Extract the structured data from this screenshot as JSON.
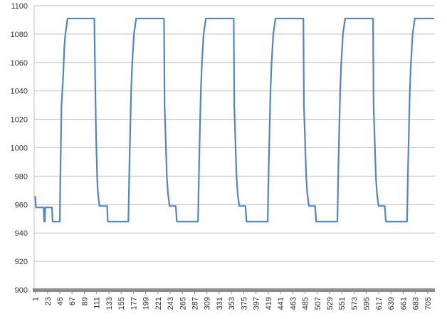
{
  "chart_data": {
    "type": "line",
    "x": [
      1,
      2,
      16,
      17,
      18,
      19,
      31,
      32,
      45,
      46,
      48,
      51,
      53,
      55,
      59,
      107,
      108,
      110,
      112,
      113,
      116,
      130,
      131,
      168,
      170,
      173,
      175,
      178,
      182,
      232,
      233,
      237,
      239,
      242,
      253,
      255,
      293,
      295,
      298,
      300,
      303,
      307,
      357,
      358,
      362,
      364,
      367,
      378,
      380,
      418,
      420,
      423,
      425,
      428,
      432,
      482,
      483,
      487,
      489,
      492,
      503,
      505,
      543,
      545,
      548,
      550,
      553,
      557,
      607,
      608,
      612,
      614,
      617,
      628,
      630,
      668,
      670,
      673,
      675,
      678,
      682,
      717
    ],
    "series": [
      {
        "color": "#4f86c6",
        "values": [
          966,
          958,
          958,
          948,
          948,
          958,
          958,
          948,
          948,
          980,
          1030,
          1050,
          1070,
          1080,
          1091,
          1091,
          1060,
          1010,
          980,
          970,
          959,
          959,
          948,
          948,
          990,
          1040,
          1060,
          1080,
          1091,
          1091,
          1030,
          980,
          968,
          959,
          959,
          948,
          948,
          990,
          1040,
          1060,
          1080,
          1091,
          1091,
          1030,
          980,
          968,
          959,
          959,
          948,
          948,
          990,
          1040,
          1060,
          1080,
          1091,
          1091,
          1030,
          980,
          968,
          959,
          959,
          948,
          948,
          990,
          1040,
          1060,
          1080,
          1091,
          1091,
          1030,
          980,
          968,
          959,
          959,
          948,
          948,
          990,
          1040,
          1060,
          1080,
          1091,
          1091
        ]
      }
    ],
    "xlim": [
      -1,
      718
    ],
    "xticks": [
      1,
      23,
      45,
      67,
      89,
      111,
      133,
      155,
      177,
      199,
      221,
      243,
      265,
      287,
      309,
      331,
      353,
      375,
      397,
      419,
      441,
      463,
      485,
      507,
      529,
      551,
      573,
      595,
      617,
      639,
      661,
      683,
      705
    ],
    "ylim": [
      900,
      1100
    ],
    "yticks": [
      900,
      920,
      940,
      960,
      980,
      1000,
      1020,
      1040,
      1060,
      1080,
      1100
    ],
    "grid": true
  }
}
